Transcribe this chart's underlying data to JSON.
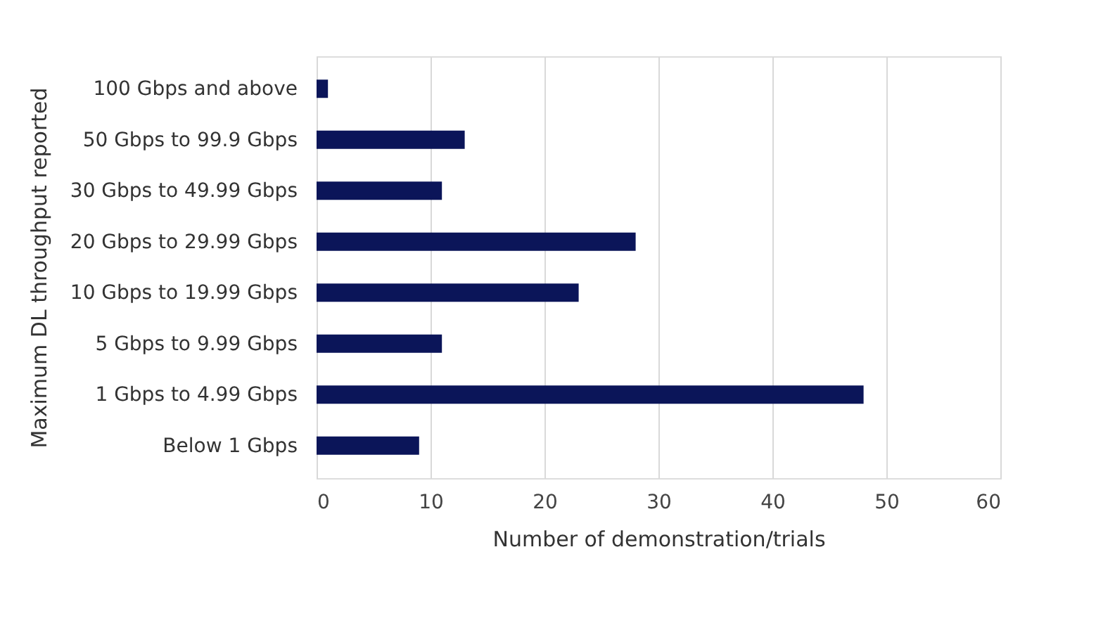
{
  "chart_data": {
    "type": "bar",
    "orientation": "horizontal",
    "categories": [
      "100 Gbps and above",
      "50 Gbps to 99.9 Gbps",
      "30 Gbps to 49.99 Gbps",
      "20 Gbps to 29.99 Gbps",
      "10 Gbps to 19.99 Gbps",
      "5 Gbps to 9.99 Gbps",
      "1 Gbps to 4.99 Gbps",
      "Below 1 Gbps"
    ],
    "values": [
      1,
      13,
      11,
      28,
      23,
      11,
      48,
      9
    ],
    "color": "#0b1559",
    "xlim": [
      0,
      60
    ],
    "xticks": [
      0,
      10,
      20,
      30,
      40,
      50,
      60
    ],
    "xlabel": "Number of demonstration/trials",
    "ylabel": "Maximum DL throughput reported",
    "grid": "x"
  }
}
